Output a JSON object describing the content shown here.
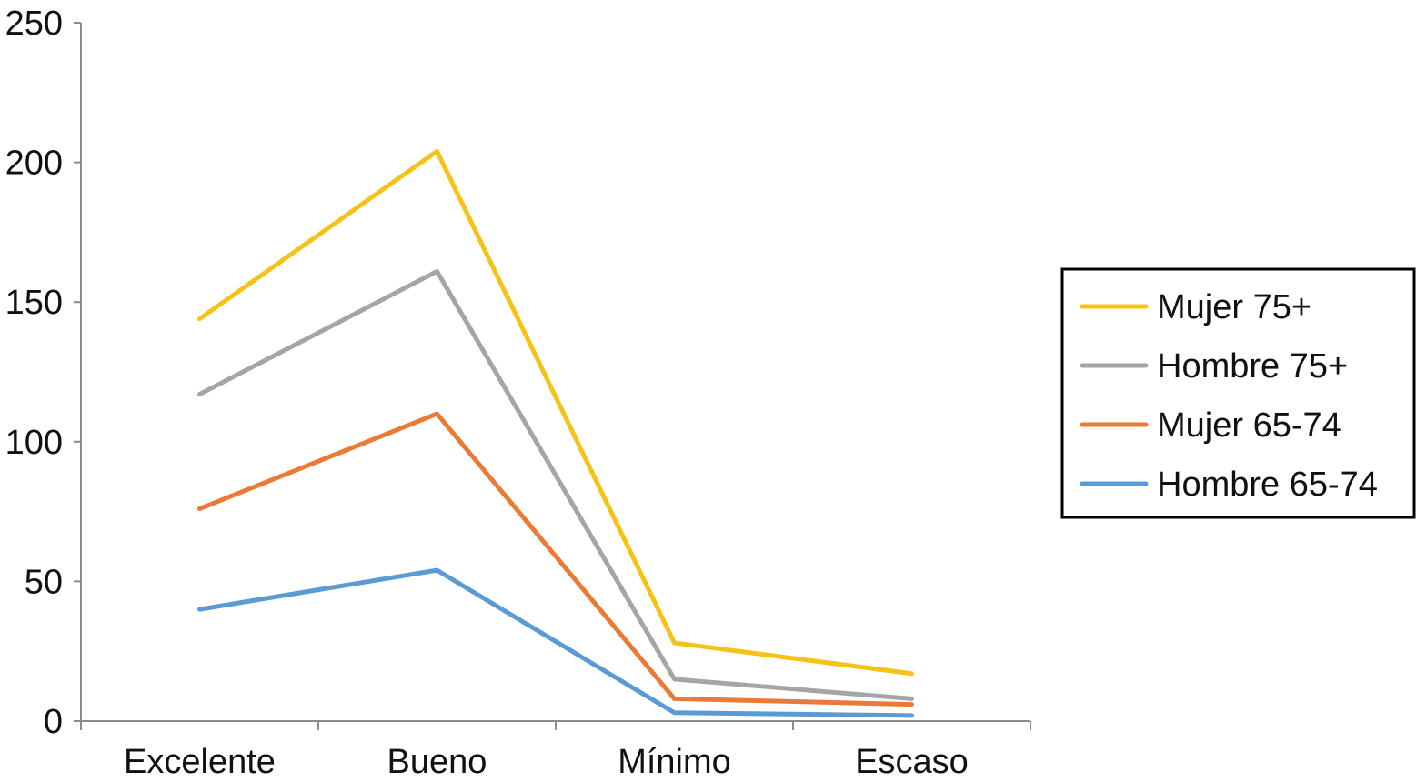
{
  "chart_data": {
    "type": "line",
    "title": "",
    "xlabel": "",
    "ylabel": "",
    "categories": [
      "Excelente",
      "Bueno",
      "Mínimo",
      "Escaso"
    ],
    "ylim": [
      0,
      250
    ],
    "yticks": [
      0,
      50,
      100,
      150,
      200,
      250
    ],
    "grid": false,
    "legend_position": "right",
    "series": [
      {
        "name": "Mujer 75+",
        "color": "#F5C318",
        "values": [
          144,
          204,
          28,
          17
        ]
      },
      {
        "name": "Hombre 75+",
        "color": "#A5A5A5",
        "values": [
          117,
          161,
          15,
          8
        ]
      },
      {
        "name": "Mujer 65-74",
        "color": "#E97B36",
        "values": [
          76,
          110,
          8,
          6
        ]
      },
      {
        "name": "Hombre 65-74",
        "color": "#5B9BD5",
        "values": [
          40,
          54,
          3,
          2
        ]
      }
    ]
  }
}
